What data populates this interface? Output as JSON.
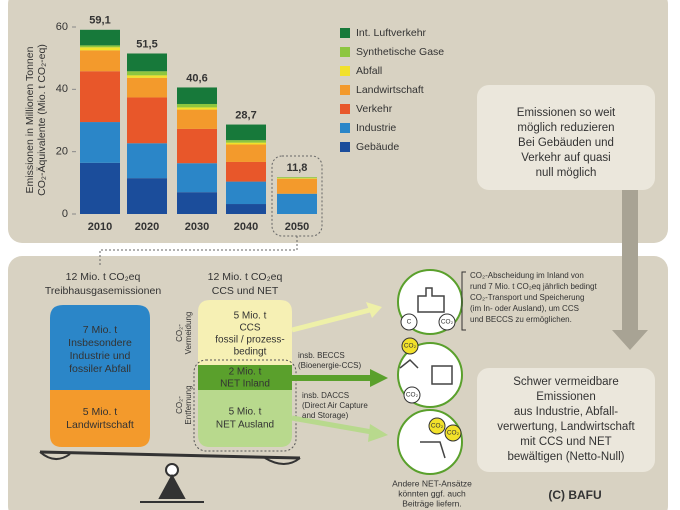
{
  "chart_data": {
    "type": "bar",
    "stacked": true,
    "ylabel": [
      "Emissionen in Millionen Tonnen",
      "CO₂-Äquivalente (Mio. t CO₂-eq)"
    ],
    "categories": [
      "2010",
      "2020",
      "2030",
      "2040",
      "2050"
    ],
    "series": [
      {
        "name": "Int. Luftverkehr",
        "color": "#17793a",
        "values": [
          5,
          5.7,
          5.3,
          5,
          0
        ]
      },
      {
        "name": "Synthetische Gase",
        "color": "#8dc63f",
        "values": [
          0.6,
          1.3,
          1.1,
          0.8,
          0.3
        ]
      },
      {
        "name": "Abfall",
        "color": "#f2e12a",
        "values": [
          1,
          0.8,
          0.7,
          0.6,
          0.2
        ]
      },
      {
        "name": "Landwirtschaft",
        "color": "#f39a2c",
        "values": [
          6.7,
          6.3,
          6.2,
          5.6,
          4.8
        ]
      },
      {
        "name": "Verkehr",
        "color": "#e8572a",
        "values": [
          16.3,
          14.7,
          11,
          6.3,
          0
        ]
      },
      {
        "name": "Industrie",
        "color": "#2b86c8",
        "values": [
          13.1,
          11.2,
          9.3,
          7.2,
          6.5
        ]
      },
      {
        "name": "Gebäude",
        "color": "#1b4d9b",
        "values": [
          16.4,
          11.5,
          7,
          3.2,
          0
        ]
      }
    ],
    "totals": {
      "values": [
        59.1,
        51.5,
        40.6,
        28.7,
        11.8
      ],
      "value_labels": [
        "59,1",
        "51,5",
        "40,6",
        "28,7",
        "11,8"
      ]
    },
    "ylim": [
      0,
      60
    ],
    "yticks": [
      0,
      20,
      40,
      60
    ],
    "legend": "top-right"
  },
  "diagram": {
    "reduce_box": [
      "Emissionen so weit",
      "möglich reduzieren",
      "Bei Gebäuden und",
      "Verkehr auf quasi",
      "null möglich"
    ],
    "hard_box": [
      "Schwer vermeidbare",
      "Emissionen",
      "aus Industrie, Abfall-",
      "verwertung, Landwirtschaft",
      "mit CCS und NET",
      "bewältigen (Netto-Null)"
    ],
    "credit": [
      "(C) BAFU"
    ],
    "emissions_heading": [
      "12 Mio. t CO₂eq",
      "Treibhausgasemissionen"
    ],
    "emissions_blue": [
      "7 Mio. t",
      "Insbesondere",
      "Industrie und",
      "fossiler Abfall"
    ],
    "emissions_orange": [
      "5 Mio. t",
      "Landwirtschaft"
    ],
    "removal_heading": [
      "12 Mio. t CO₂eq",
      "CCS und NET"
    ],
    "ccs_box": [
      "5 Mio. t",
      "CCS",
      "fossil / prozess-",
      "bedingt"
    ],
    "net_inland": [
      "2 Mio. t",
      "NET Inland"
    ],
    "net_abroad": [
      "5 Mio. t",
      "NET Ausland"
    ],
    "avoidance_label": [
      "CO₂-",
      "Vermeidung"
    ],
    "removal_label": [
      "CO₂-",
      "Entfernung"
    ],
    "beccs_label": [
      "insb. BECCS",
      "(Bioenergie-CCS)"
    ],
    "daccs_label": [
      "insb. DACCS",
      "(Direct Air Capture",
      "and Storage)"
    ],
    "transport_note": [
      "CO₂-Abscheidung im Inland von",
      "rund 7 Mio. t CO₂eq jährlich bedingt",
      "CO₂-Transport und Speicherung",
      "(im In- oder Ausland), um CCS",
      "und BECCS zu ermöglichen."
    ],
    "other_net_note": [
      "Andere NET-Ansätze",
      "könnten ggf. auch",
      "Beiträge liefern."
    ],
    "icon_labels": [
      "C",
      "CO₂",
      "CO₂",
      "CO₂",
      "CO₂",
      "CO₂"
    ]
  }
}
